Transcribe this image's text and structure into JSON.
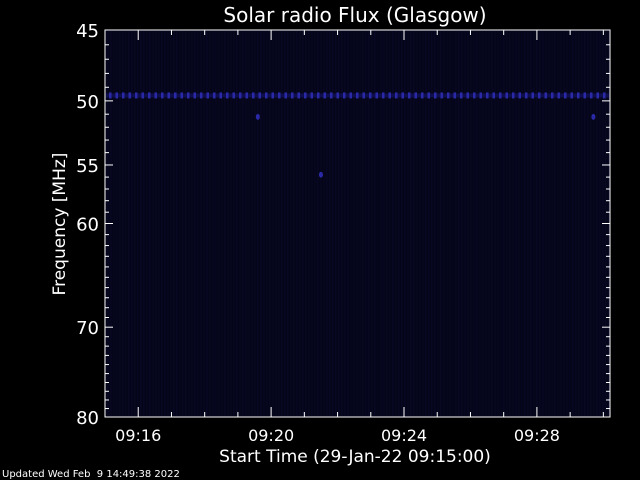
{
  "chart_data": {
    "type": "heatmap",
    "title": "Solar radio Flux (Glasgow)",
    "xlabel": "Start Time (29-Jan-22 09:15:00)",
    "ylabel": "Frequency [MHz]",
    "footer": "Updated Wed Feb  9 14:49:38 2022",
    "x_ticks": [
      "09:16",
      "09:20",
      "09:24",
      "09:28"
    ],
    "x_tick_minutes": [
      16,
      20,
      24,
      28
    ],
    "xlim_minutes": [
      15,
      30.2
    ],
    "y_ticks": [
      45,
      50,
      55,
      60,
      70,
      80
    ],
    "ylim": [
      45,
      80
    ],
    "y_scale": "log",
    "colors": {
      "background": "#000000",
      "plot_bg": "#05051a",
      "signal": "#2a2aa8",
      "axis": "#ffffff"
    },
    "features": [
      {
        "type": "band",
        "frequency": 49.6,
        "intensity": "moderate"
      },
      {
        "type": "spot",
        "time_minutes": 19.6,
        "frequency": 51.2
      },
      {
        "type": "spot",
        "time_minutes": 21.5,
        "frequency": 55.8
      },
      {
        "type": "spot",
        "time_minutes": 29.7,
        "frequency": 51.2
      }
    ]
  }
}
